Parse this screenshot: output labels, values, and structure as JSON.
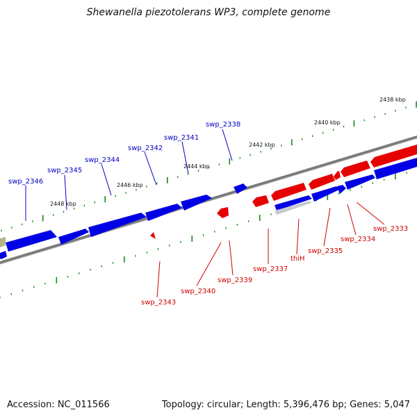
{
  "title": "Shewanella piezotolerans WP3, complete genome",
  "footer": {
    "accession": "Accession: NC_011566",
    "stats": "Topology: circular; Length: 5,396,476 bp; Genes: 5,047"
  },
  "colors": {
    "forward_strand": "#0000e6",
    "reverse_strand": "#e60000",
    "backbone": "#777777",
    "tick_green": "#138a13",
    "other_feature": "#b8b48c"
  },
  "kbp_labels": [
    "2438 kbp",
    "2440 kbp",
    "2442 kbp",
    "2444 kbp",
    "2446 kbp",
    "2448 kbp"
  ],
  "forward_genes": [
    "swp_2338",
    "swp_2341",
    "swp_2342",
    "swp_2344",
    "swp_2345",
    "swp_2346"
  ],
  "reverse_genes": [
    "swp_2333",
    "swp_2334",
    "swp_2335",
    "thiH",
    "swp_2337",
    "swp_2339",
    "swp_2340",
    "swp_2343"
  ]
}
